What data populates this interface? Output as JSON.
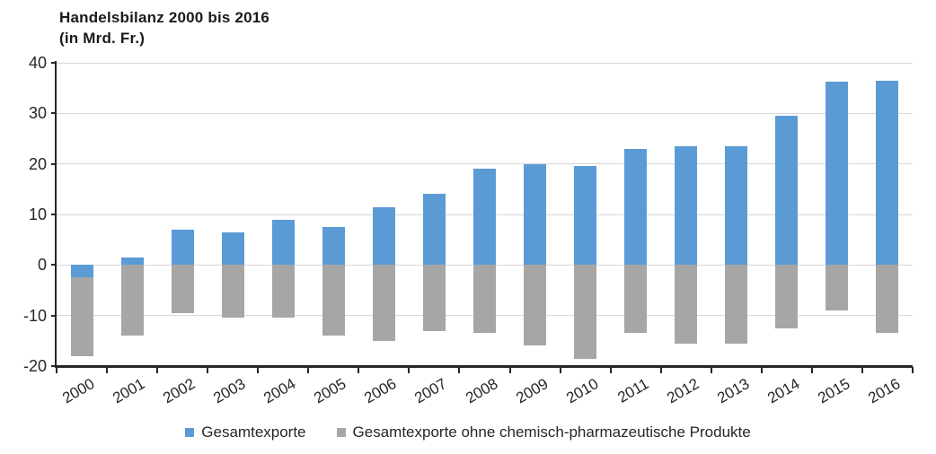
{
  "title": {
    "line1": "Handelsbilanz 2000 bis 2016",
    "line2": "(in Mrd. Fr.)"
  },
  "legend": [
    {
      "label": "Gesamtexporte",
      "color": "#5b9bd5",
      "swatch_icon": "square-icon"
    },
    {
      "label": "Gesamtexporte ohne chemisch-pharmazeutische Produkte",
      "color": "#a6a6a6",
      "swatch_icon": "square-icon"
    }
  ],
  "colors": {
    "series_blue": "#5b9bd5",
    "series_gray": "#a6a6a6",
    "gridline": "#d9d9d9",
    "axis": "#262626",
    "text": "#262626",
    "background": "#ffffff"
  },
  "chart_data": {
    "type": "bar",
    "title": "Handelsbilanz 2000 bis 2016 (in Mrd. Fr.)",
    "xlabel": "",
    "ylabel": "",
    "ylim": [
      -20,
      40
    ],
    "yticks": [
      40,
      30,
      20,
      10,
      0,
      -10,
      -20
    ],
    "grid": true,
    "bar_style": "overlapped",
    "legend_position": "bottom",
    "categories": [
      "2000",
      "2001",
      "2002",
      "2003",
      "2004",
      "2005",
      "2006",
      "2007",
      "2008",
      "2009",
      "2010",
      "2011",
      "2012",
      "2013",
      "2014",
      "2015",
      "2016"
    ],
    "series": [
      {
        "name": "Gesamtexporte",
        "color": "#5b9bd5",
        "values": [
          -2.5,
          1.5,
          7,
          6.5,
          9,
          7.5,
          11.5,
          14,
          19,
          20,
          19.5,
          23,
          23.5,
          23.5,
          29.5,
          36.3,
          36.5
        ]
      },
      {
        "name": "Gesamtexporte ohne chemisch-pharmazeutische Produkte",
        "color": "#a6a6a6",
        "values": [
          -18,
          -14,
          -9.5,
          -10.5,
          -10.5,
          -14,
          -15,
          -13,
          -13.5,
          -16,
          -18.5,
          -13.5,
          -15.5,
          -15.5,
          -12.5,
          -9,
          -13.5
        ]
      }
    ]
  }
}
